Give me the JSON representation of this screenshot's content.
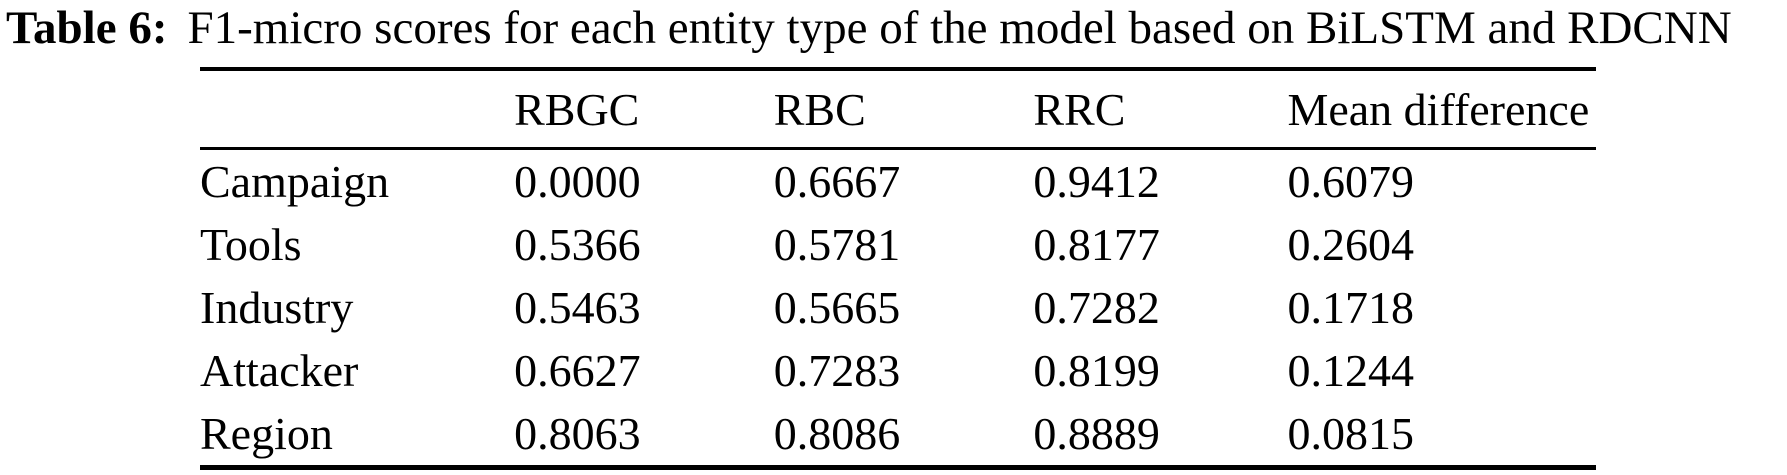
{
  "caption": {
    "label": "Table 6:",
    "text": "F1-micro scores for each entity type of the model based on BiLSTM and RDCNN"
  },
  "table": {
    "columns": [
      "",
      "RBGC",
      "RBC",
      "RRC",
      "Mean difference"
    ],
    "rows": [
      {
        "entity": "Campaign",
        "values": [
          "0.0000",
          "0.6667",
          "0.9412",
          "0.6079"
        ]
      },
      {
        "entity": "Tools",
        "values": [
          "0.5366",
          "0.5781",
          "0.8177",
          "0.2604"
        ]
      },
      {
        "entity": "Industry",
        "values": [
          "0.5463",
          "0.5665",
          "0.7282",
          "0.1718"
        ]
      },
      {
        "entity": "Attacker",
        "values": [
          "0.6627",
          "0.7283",
          "0.8199",
          "0.1244"
        ]
      },
      {
        "entity": "Region",
        "values": [
          "0.8063",
          "0.8086",
          "0.8889",
          "0.0815"
        ]
      }
    ]
  },
  "colors": {
    "text": "#000000",
    "background": "#ffffff",
    "rule": "#000000"
  }
}
